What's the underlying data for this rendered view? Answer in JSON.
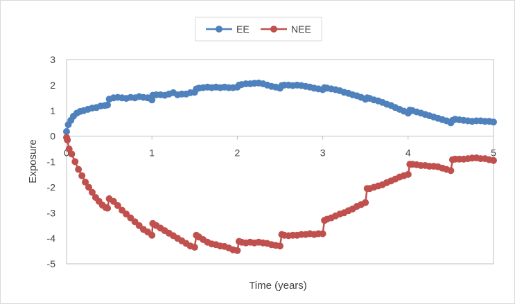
{
  "chart_data": {
    "type": "line",
    "title": "",
    "xlabel": "Time (years)",
    "ylabel": "Exposure",
    "xlim": [
      0,
      5
    ],
    "ylim": [
      -5,
      3
    ],
    "x_ticks": [
      0,
      1,
      2,
      3,
      4,
      5
    ],
    "y_ticks": [
      3,
      2,
      1,
      0,
      -1,
      -2,
      -3,
      -4,
      -5
    ],
    "grid": false,
    "legend": "top-center",
    "series": [
      {
        "name": "EE",
        "color": "#4f81bd",
        "points": [
          [
            0.0,
            0.18
          ],
          [
            0.02,
            0.45
          ],
          [
            0.05,
            0.62
          ],
          [
            0.08,
            0.78
          ],
          [
            0.12,
            0.9
          ],
          [
            0.16,
            0.97
          ],
          [
            0.2,
            1.0
          ],
          [
            0.25,
            1.05
          ],
          [
            0.3,
            1.1
          ],
          [
            0.35,
            1.12
          ],
          [
            0.4,
            1.18
          ],
          [
            0.45,
            1.2
          ],
          [
            0.48,
            1.22
          ],
          [
            0.5,
            1.45
          ],
          [
            0.55,
            1.5
          ],
          [
            0.6,
            1.52
          ],
          [
            0.65,
            1.5
          ],
          [
            0.7,
            1.48
          ],
          [
            0.75,
            1.52
          ],
          [
            0.8,
            1.5
          ],
          [
            0.85,
            1.55
          ],
          [
            0.9,
            1.52
          ],
          [
            0.95,
            1.5
          ],
          [
            1.0,
            1.42
          ],
          [
            1.01,
            1.6
          ],
          [
            1.05,
            1.62
          ],
          [
            1.1,
            1.62
          ],
          [
            1.15,
            1.6
          ],
          [
            1.2,
            1.65
          ],
          [
            1.25,
            1.7
          ],
          [
            1.3,
            1.62
          ],
          [
            1.35,
            1.65
          ],
          [
            1.4,
            1.65
          ],
          [
            1.45,
            1.7
          ],
          [
            1.5,
            1.72
          ],
          [
            1.52,
            1.85
          ],
          [
            1.55,
            1.88
          ],
          [
            1.6,
            1.9
          ],
          [
            1.65,
            1.92
          ],
          [
            1.7,
            1.9
          ],
          [
            1.75,
            1.92
          ],
          [
            1.8,
            1.9
          ],
          [
            1.85,
            1.92
          ],
          [
            1.9,
            1.9
          ],
          [
            1.95,
            1.9
          ],
          [
            2.0,
            1.92
          ],
          [
            2.02,
            2.0
          ],
          [
            2.05,
            2.02
          ],
          [
            2.1,
            2.05
          ],
          [
            2.15,
            2.05
          ],
          [
            2.2,
            2.07
          ],
          [
            2.25,
            2.08
          ],
          [
            2.3,
            2.05
          ],
          [
            2.35,
            2.0
          ],
          [
            2.4,
            1.95
          ],
          [
            2.45,
            1.92
          ],
          [
            2.5,
            1.88
          ],
          [
            2.52,
            1.98
          ],
          [
            2.55,
            2.0
          ],
          [
            2.6,
            2.0
          ],
          [
            2.65,
            1.98
          ],
          [
            2.7,
            2.0
          ],
          [
            2.75,
            1.98
          ],
          [
            2.8,
            1.95
          ],
          [
            2.85,
            1.92
          ],
          [
            2.9,
            1.88
          ],
          [
            2.95,
            1.85
          ],
          [
            3.0,
            1.82
          ],
          [
            3.02,
            1.9
          ],
          [
            3.05,
            1.88
          ],
          [
            3.1,
            1.85
          ],
          [
            3.15,
            1.82
          ],
          [
            3.2,
            1.78
          ],
          [
            3.25,
            1.72
          ],
          [
            3.3,
            1.68
          ],
          [
            3.35,
            1.62
          ],
          [
            3.4,
            1.58
          ],
          [
            3.45,
            1.52
          ],
          [
            3.5,
            1.45
          ],
          [
            3.52,
            1.5
          ],
          [
            3.55,
            1.48
          ],
          [
            3.6,
            1.42
          ],
          [
            3.65,
            1.38
          ],
          [
            3.7,
            1.32
          ],
          [
            3.75,
            1.25
          ],
          [
            3.8,
            1.2
          ],
          [
            3.85,
            1.12
          ],
          [
            3.9,
            1.05
          ],
          [
            3.95,
            0.98
          ],
          [
            4.0,
            0.9
          ],
          [
            4.02,
            1.02
          ],
          [
            4.05,
            1.0
          ],
          [
            4.1,
            0.95
          ],
          [
            4.15,
            0.9
          ],
          [
            4.2,
            0.85
          ],
          [
            4.25,
            0.8
          ],
          [
            4.3,
            0.75
          ],
          [
            4.35,
            0.7
          ],
          [
            4.4,
            0.65
          ],
          [
            4.45,
            0.6
          ],
          [
            4.5,
            0.52
          ],
          [
            4.52,
            0.62
          ],
          [
            4.55,
            0.66
          ],
          [
            4.6,
            0.64
          ],
          [
            4.65,
            0.62
          ],
          [
            4.7,
            0.6
          ],
          [
            4.75,
            0.58
          ],
          [
            4.8,
            0.6
          ],
          [
            4.85,
            0.6
          ],
          [
            4.9,
            0.58
          ],
          [
            4.95,
            0.58
          ],
          [
            5.0,
            0.55
          ]
        ]
      },
      {
        "name": "NEE",
        "color": "#c0504d",
        "points": [
          [
            0.0,
            -0.05
          ],
          [
            0.01,
            -0.15
          ],
          [
            0.03,
            -0.5
          ],
          [
            0.06,
            -0.7
          ],
          [
            0.1,
            -1.0
          ],
          [
            0.14,
            -1.3
          ],
          [
            0.18,
            -1.55
          ],
          [
            0.22,
            -1.8
          ],
          [
            0.26,
            -2.0
          ],
          [
            0.3,
            -2.2
          ],
          [
            0.34,
            -2.4
          ],
          [
            0.38,
            -2.55
          ],
          [
            0.42,
            -2.7
          ],
          [
            0.46,
            -2.8
          ],
          [
            0.48,
            -2.82
          ],
          [
            0.5,
            -2.45
          ],
          [
            0.55,
            -2.55
          ],
          [
            0.6,
            -2.72
          ],
          [
            0.65,
            -2.9
          ],
          [
            0.7,
            -3.05
          ],
          [
            0.75,
            -3.2
          ],
          [
            0.8,
            -3.35
          ],
          [
            0.85,
            -3.5
          ],
          [
            0.9,
            -3.65
          ],
          [
            0.95,
            -3.75
          ],
          [
            1.0,
            -3.88
          ],
          [
            1.01,
            -3.42
          ],
          [
            1.05,
            -3.5
          ],
          [
            1.1,
            -3.6
          ],
          [
            1.15,
            -3.7
          ],
          [
            1.2,
            -3.8
          ],
          [
            1.25,
            -3.9
          ],
          [
            1.3,
            -4.0
          ],
          [
            1.35,
            -4.1
          ],
          [
            1.4,
            -4.2
          ],
          [
            1.45,
            -4.3
          ],
          [
            1.5,
            -4.35
          ],
          [
            1.52,
            -3.88
          ],
          [
            1.55,
            -3.95
          ],
          [
            1.6,
            -4.05
          ],
          [
            1.65,
            -4.15
          ],
          [
            1.7,
            -4.22
          ],
          [
            1.75,
            -4.25
          ],
          [
            1.8,
            -4.3
          ],
          [
            1.85,
            -4.32
          ],
          [
            1.9,
            -4.38
          ],
          [
            1.95,
            -4.45
          ],
          [
            2.0,
            -4.48
          ],
          [
            2.02,
            -4.12
          ],
          [
            2.05,
            -4.15
          ],
          [
            2.1,
            -4.18
          ],
          [
            2.15,
            -4.15
          ],
          [
            2.2,
            -4.18
          ],
          [
            2.25,
            -4.15
          ],
          [
            2.3,
            -4.18
          ],
          [
            2.35,
            -4.2
          ],
          [
            2.4,
            -4.25
          ],
          [
            2.45,
            -4.28
          ],
          [
            2.5,
            -4.3
          ],
          [
            2.52,
            -3.85
          ],
          [
            2.55,
            -3.88
          ],
          [
            2.6,
            -3.9
          ],
          [
            2.65,
            -3.88
          ],
          [
            2.7,
            -3.88
          ],
          [
            2.75,
            -3.85
          ],
          [
            2.8,
            -3.85
          ],
          [
            2.85,
            -3.82
          ],
          [
            2.9,
            -3.85
          ],
          [
            2.95,
            -3.82
          ],
          [
            3.0,
            -3.82
          ],
          [
            3.02,
            -3.3
          ],
          [
            3.05,
            -3.25
          ],
          [
            3.1,
            -3.2
          ],
          [
            3.15,
            -3.12
          ],
          [
            3.2,
            -3.05
          ],
          [
            3.25,
            -3.0
          ],
          [
            3.3,
            -2.92
          ],
          [
            3.35,
            -2.85
          ],
          [
            3.4,
            -2.75
          ],
          [
            3.45,
            -2.68
          ],
          [
            3.5,
            -2.6
          ],
          [
            3.52,
            -2.05
          ],
          [
            3.55,
            -2.05
          ],
          [
            3.6,
            -2.0
          ],
          [
            3.65,
            -1.95
          ],
          [
            3.7,
            -1.9
          ],
          [
            3.75,
            -1.82
          ],
          [
            3.8,
            -1.75
          ],
          [
            3.85,
            -1.68
          ],
          [
            3.9,
            -1.6
          ],
          [
            3.95,
            -1.55
          ],
          [
            4.0,
            -1.5
          ],
          [
            4.02,
            -1.1
          ],
          [
            4.05,
            -1.1
          ],
          [
            4.1,
            -1.12
          ],
          [
            4.15,
            -1.15
          ],
          [
            4.2,
            -1.15
          ],
          [
            4.25,
            -1.18
          ],
          [
            4.3,
            -1.18
          ],
          [
            4.35,
            -1.2
          ],
          [
            4.4,
            -1.25
          ],
          [
            4.45,
            -1.3
          ],
          [
            4.5,
            -1.35
          ],
          [
            4.52,
            -0.92
          ],
          [
            4.55,
            -0.9
          ],
          [
            4.6,
            -0.9
          ],
          [
            4.65,
            -0.9
          ],
          [
            4.7,
            -0.88
          ],
          [
            4.75,
            -0.86
          ],
          [
            4.8,
            -0.85
          ],
          [
            4.85,
            -0.88
          ],
          [
            4.9,
            -0.88
          ],
          [
            4.95,
            -0.92
          ],
          [
            5.0,
            -0.95
          ]
        ]
      }
    ]
  }
}
